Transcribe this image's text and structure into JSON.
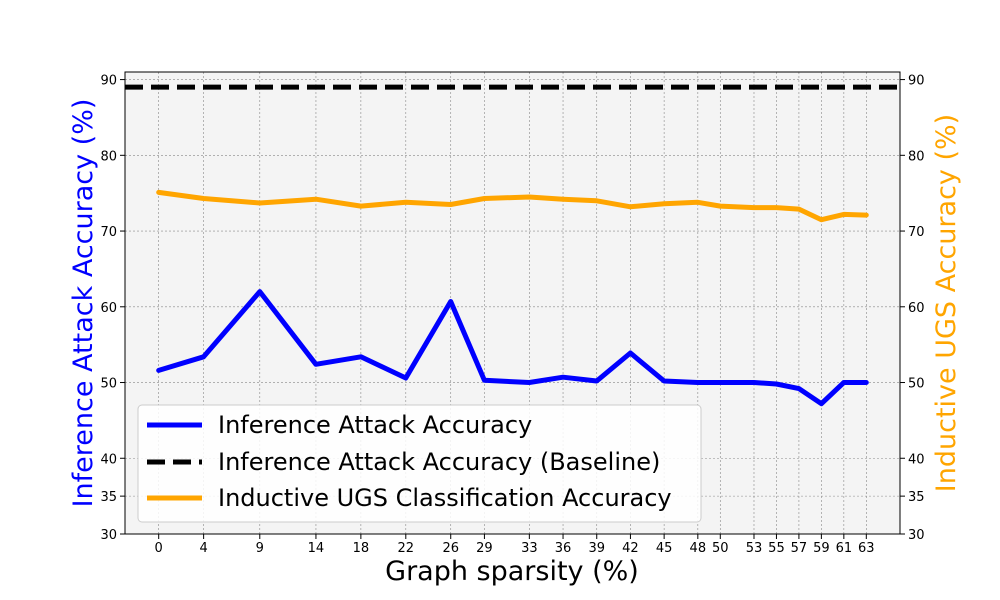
{
  "chart_data": {
    "type": "line",
    "xlabel": "Graph sparsity (%)",
    "ylabel_left": "Inference Attack Accuracy (%)",
    "ylabel_right": "Inductive UGS Accuracy (%)",
    "ylim": [
      30,
      91
    ],
    "yticks": [
      30,
      35,
      40,
      50,
      60,
      70,
      80,
      90
    ],
    "x_tick_labels": [
      "0",
      "4",
      "9",
      "14",
      "18",
      "22",
      "26",
      "29",
      "33",
      "36",
      "39",
      "42",
      "45",
      "48",
      "50",
      "53",
      "55",
      "57",
      "59",
      "61",
      "63"
    ],
    "x_tick_values": [
      0,
      4,
      9,
      14,
      18,
      22,
      26,
      29,
      33,
      36,
      39,
      42,
      45,
      48,
      50,
      53,
      55,
      57,
      59,
      61,
      63
    ],
    "grid": true,
    "legend_position": "lower-left",
    "colors": {
      "left_axis_label": "#0000ff",
      "right_axis_label": "#ffa500",
      "plot_background": "#f4f4f4",
      "grid": "#888888"
    },
    "series": [
      {
        "name": "Inference Attack Accuracy",
        "color": "#0000ff",
        "style": "solid",
        "x": [
          0,
          4,
          9,
          14,
          18,
          22,
          26,
          29,
          33,
          36,
          39,
          42,
          45,
          48,
          50,
          53,
          55,
          57,
          59,
          61,
          63
        ],
        "values": [
          51.6,
          53.4,
          62.0,
          52.4,
          53.4,
          50.6,
          60.7,
          50.3,
          50.0,
          50.7,
          50.2,
          53.9,
          50.2,
          50.0,
          50.0,
          50.0,
          49.8,
          49.2,
          47.2,
          50.0,
          50.0
        ]
      },
      {
        "name": "Inference Attack Accuracy (Baseline)",
        "color": "#000000",
        "style": "dashed",
        "x": [
          -3,
          66
        ],
        "values": [
          89,
          89
        ]
      },
      {
        "name": "Inductive UGS Classification Accuracy",
        "color": "#ffa500",
        "style": "solid",
        "x": [
          0,
          4,
          9,
          14,
          18,
          22,
          26,
          29,
          33,
          36,
          39,
          42,
          45,
          48,
          50,
          53,
          55,
          57,
          59,
          61,
          63
        ],
        "values": [
          75.1,
          74.3,
          73.7,
          74.2,
          73.3,
          73.8,
          73.5,
          74.3,
          74.5,
          74.2,
          74.0,
          73.2,
          73.6,
          73.8,
          73.3,
          73.1,
          73.1,
          72.9,
          71.5,
          72.2,
          72.1
        ]
      }
    ]
  }
}
